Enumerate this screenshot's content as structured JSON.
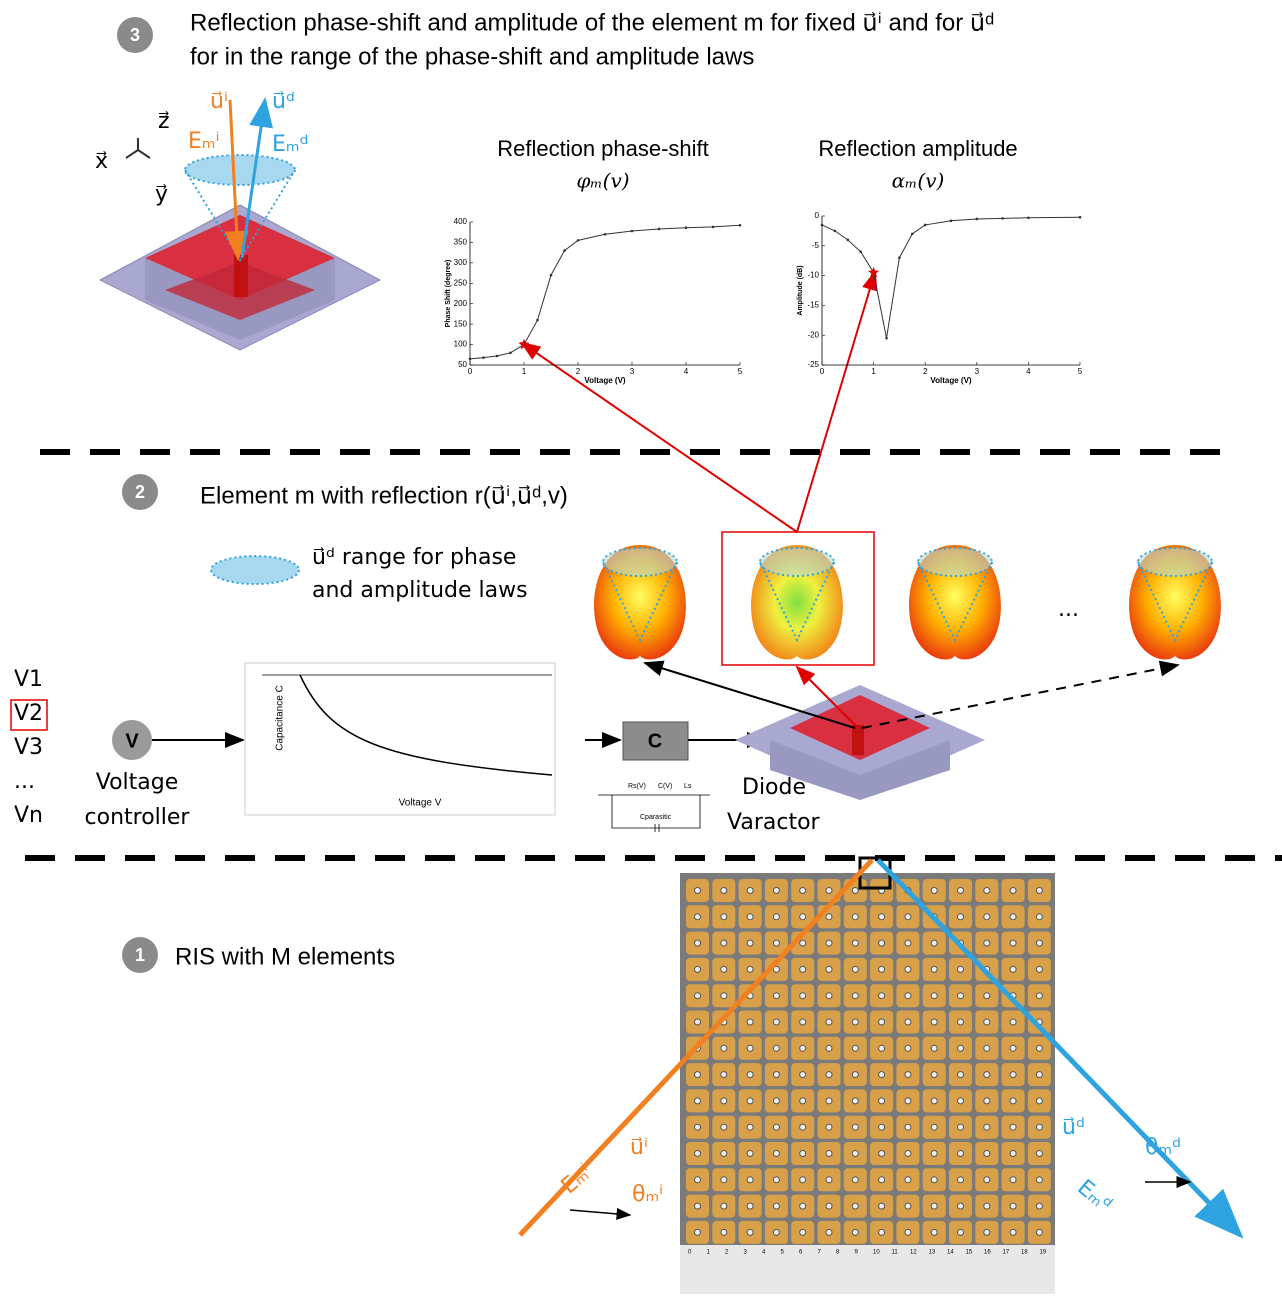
{
  "step3": {
    "number": "3",
    "line1": "Reflection phase-shift and amplitude of the element m for fixed u⃗ⁱ and for u⃗ᵈ",
    "line2": "for in the range of the phase-shift and amplitude laws",
    "axis_x": "x⃗",
    "axis_y": "y⃗",
    "axis_z": "z⃗",
    "incident": "u⃗ⁱ",
    "incident_field": "Eₘⁱ",
    "reflected": "u⃗ᵈ",
    "reflected_field": "Eₘᵈ"
  },
  "step2": {
    "number": "2",
    "title": "Element m with reflection r(u⃗ⁱ,u⃗ᵈ,v)",
    "legend_line1": "u⃗ᵈ range for phase",
    "legend_line2": "and amplitude laws",
    "ellipsis": "...",
    "voltages": [
      "V1",
      "V2",
      "V3",
      "...",
      "Vn"
    ],
    "controller_symbol": "V",
    "controller_line1": "Voltage",
    "controller_line2": "controller",
    "cap_y_label": "Capacitance C",
    "cap_x_label": "Voltage V",
    "capacitor_symbol": "C",
    "circuit_rs": "Rs(V)",
    "circuit_cv": "C(V)",
    "circuit_ls": "Ls",
    "circuit_cp": "Cparasitic",
    "diode_line1": "Diode",
    "diode_line2": "Varactor"
  },
  "step1": {
    "number": "1",
    "title": "RIS with M elements",
    "incident": "u⃗ⁱ",
    "incident_field": "Eₘⁱ",
    "incident_angle": "θₘⁱ",
    "reflected": "u⃗ᵈ",
    "reflected_field": "Eₘᵈ",
    "reflected_angle": "θₘᵈ",
    "ruler": [
      "0",
      "1",
      "2",
      "3",
      "4",
      "5",
      "6",
      "7",
      "8",
      "9",
      "10",
      "11",
      "12",
      "13",
      "14",
      "15",
      "16",
      "17",
      "18",
      "19"
    ]
  },
  "chart_data": [
    {
      "type": "line",
      "title": "Reflection phase-shift",
      "subtitle": "φₘ(v)",
      "x_label": "Voltage (V)",
      "y_label": "Phase Shift (degree)",
      "x": [
        0,
        0.25,
        0.5,
        0.75,
        1,
        1.25,
        1.5,
        1.75,
        2,
        2.5,
        3,
        3.5,
        4,
        4.5,
        5
      ],
      "values": [
        65,
        68,
        72,
        80,
        100,
        160,
        270,
        330,
        355,
        370,
        378,
        383,
        386,
        388,
        392
      ],
      "highlight_index": 4,
      "color": "#333333",
      "highlight_color": "#e00000",
      "xlim": [
        0,
        5
      ],
      "ylim": [
        50,
        400
      ],
      "xticks": [
        0,
        1,
        2,
        3,
        4,
        5
      ],
      "yticks": [
        50,
        100,
        150,
        200,
        250,
        300,
        350,
        400
      ]
    },
    {
      "type": "line",
      "title": "Reflection amplitude",
      "subtitle": "αₘ(v)",
      "x_label": "Voltage (V)",
      "y_label": "Amplitude (dB)",
      "x": [
        0,
        0.25,
        0.5,
        0.75,
        1,
        1.25,
        1.5,
        1.75,
        2,
        2.5,
        3,
        3.5,
        4,
        5
      ],
      "values": [
        -1.5,
        -2.5,
        -4,
        -6,
        -9.5,
        -20.5,
        -7,
        -3,
        -1.5,
        -0.8,
        -0.5,
        -0.4,
        -0.3,
        -0.2
      ],
      "highlight_index": 4,
      "color": "#333333",
      "highlight_color": "#e00000",
      "xlim": [
        0,
        5
      ],
      "ylim": [
        -25,
        0
      ],
      "xticks": [
        0,
        1,
        2,
        3,
        4,
        5
      ],
      "yticks": [
        -25,
        -20,
        -15,
        -10,
        -5,
        0
      ]
    }
  ]
}
